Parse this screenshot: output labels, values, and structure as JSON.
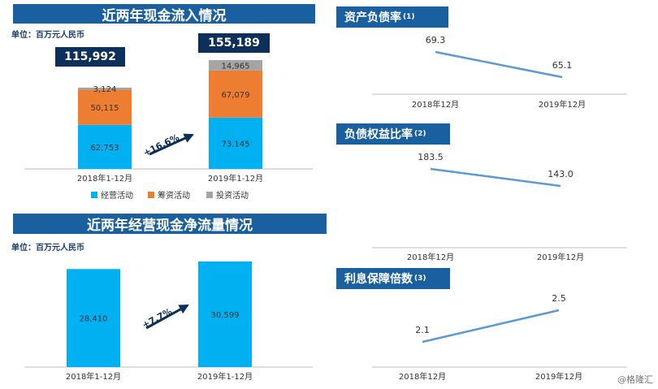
{
  "cashflow_in": {
    "title": "近两年现金流入情况",
    "unit": "单位：百万元人民币",
    "growth": "+16.6%",
    "legend": [
      "经营活动",
      "筹资活动",
      "投资活动"
    ]
  },
  "net_op": {
    "title": "近两年经营现金净流量情况",
    "unit": "单位：百万元人民币",
    "growth": "+7.7%"
  },
  "ratios": [
    {
      "title": "资产负债率",
      "note": "(1)"
    },
    {
      "title": "负债权益比率",
      "note": "(2)"
    },
    {
      "title": "利息保障倍数",
      "note": "(3)"
    }
  ],
  "watermark": "@格隆汇",
  "colors": {
    "operating": "#00b0f0",
    "financing": "#ed7d31",
    "investing": "#a5a5a5",
    "line": "#5b9bd5",
    "banner": "#1a5fa0"
  },
  "chart_data": [
    {
      "type": "bar",
      "stacked": true,
      "title": "近两年现金流入情况",
      "categories": [
        "2018年1-12月",
        "2019年1-12月"
      ],
      "series": [
        {
          "name": "经营活动",
          "values": [
            62753,
            73145
          ],
          "labels": [
            "62,753",
            "73,145"
          ]
        },
        {
          "name": "筹资活动",
          "values": [
            50115,
            67079
          ],
          "labels": [
            "50,115",
            "67,079"
          ]
        },
        {
          "name": "投资活动",
          "values": [
            3124,
            14965
          ],
          "labels": [
            "3,124",
            "14,965"
          ]
        }
      ],
      "totals": [
        115992,
        155189
      ],
      "total_labels": [
        "115,992",
        "155,189"
      ],
      "legend_position": "bottom"
    },
    {
      "type": "bar",
      "title": "近两年经营现金净流量情况",
      "categories": [
        "2018年1-12月",
        "2019年1-12月"
      ],
      "values": [
        28410,
        30599
      ],
      "labels": [
        "28,410",
        "30,599"
      ]
    },
    {
      "type": "line",
      "title": "资产负债率",
      "categories": [
        "2018年12月",
        "2019年12月"
      ],
      "values": [
        69.3,
        65.1
      ],
      "labels": [
        "69.3",
        "65.1"
      ]
    },
    {
      "type": "line",
      "title": "负债权益比率",
      "categories": [
        "2018年12月",
        "2019年12月"
      ],
      "values": [
        183.5,
        143.0
      ],
      "labels": [
        "183.5",
        "143.0"
      ]
    },
    {
      "type": "line",
      "title": "利息保障倍数",
      "categories": [
        "2018年12月",
        "2019年12月"
      ],
      "values": [
        2.1,
        2.5
      ],
      "labels": [
        "2.1",
        "2.5"
      ]
    }
  ]
}
